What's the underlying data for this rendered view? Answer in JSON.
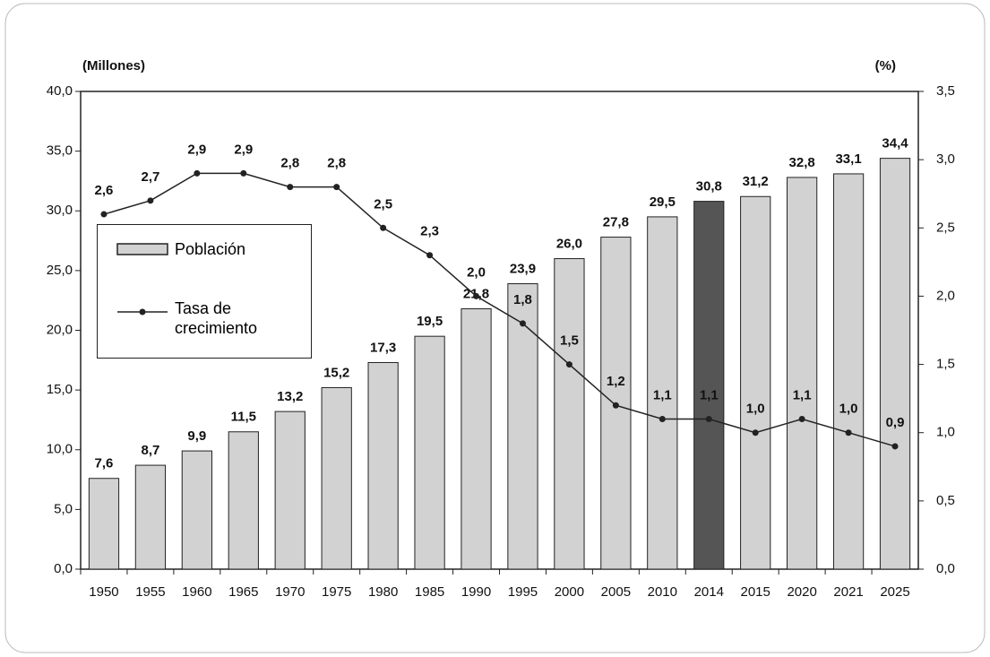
{
  "chart_data": {
    "type": "bar_line",
    "ylabel": "(Millones)",
    "y2label": "(%)",
    "categories": [
      "1950",
      "1955",
      "1960",
      "1965",
      "1970",
      "1975",
      "1980",
      "1985",
      "1990",
      "1995",
      "2000",
      "2005",
      "2010",
      "2014",
      "2015",
      "2020",
      "2021",
      "2025"
    ],
    "series": [
      {
        "name": "Población",
        "type": "bar",
        "color": "#d2d2d2",
        "colors": [
          "#d2d2d2",
          "#d2d2d2",
          "#d2d2d2",
          "#d2d2d2",
          "#d2d2d2",
          "#d2d2d2",
          "#d2d2d2",
          "#d2d2d2",
          "#d2d2d2",
          "#d2d2d2",
          "#d2d2d2",
          "#d2d2d2",
          "#d2d2d2",
          "#555555",
          "#d2d2d2",
          "#d2d2d2",
          "#d2d2d2",
          "#d2d2d2"
        ],
        "values": [
          7.6,
          8.7,
          9.9,
          11.5,
          13.2,
          15.2,
          17.3,
          19.5,
          21.8,
          23.9,
          26.0,
          27.8,
          29.5,
          30.8,
          31.2,
          32.8,
          33.1,
          34.4
        ],
        "value_labels": [
          "7,6",
          "8,7",
          "9,9",
          "11,5",
          "13,2",
          "15,2",
          "17,3",
          "19,5",
          "21,8",
          "23,9",
          "26,0",
          "27,8",
          "29,5",
          "30,8",
          "31,2",
          "32,8",
          "33,1",
          "34,4"
        ]
      },
      {
        "name": "Tasa de crecimiento",
        "type": "line",
        "axis": "y2",
        "color": "#222222",
        "values": [
          2.6,
          2.7,
          2.9,
          2.9,
          2.8,
          2.8,
          2.5,
          2.3,
          2.0,
          1.8,
          1.5,
          1.2,
          1.1,
          1.1,
          1.0,
          1.1,
          1.0,
          0.9
        ],
        "value_labels": [
          "2,6",
          "2,7",
          "2,9",
          "2,9",
          "2,8",
          "2,8",
          "2,5",
          "2,3",
          "2,0",
          "1,8",
          "1,5",
          "1,2",
          "1,1",
          "1,1",
          "1,0",
          "1,1",
          "1,0",
          "0,9"
        ]
      }
    ],
    "ylim": [
      0,
      40
    ],
    "yticks": [
      {
        "value": 0,
        "label": "0,0"
      },
      {
        "value": 5,
        "label": "5,0"
      },
      {
        "value": 10,
        "label": "10,0"
      },
      {
        "value": 15,
        "label": "15,0"
      },
      {
        "value": 20,
        "label": "20,0"
      },
      {
        "value": 25,
        "label": "25,0"
      },
      {
        "value": 30,
        "label": "30,0"
      },
      {
        "value": 35,
        "label": "35,0"
      },
      {
        "value": 40,
        "label": "40,0"
      }
    ],
    "y2lim": [
      0,
      3.5
    ],
    "y2ticks": [
      {
        "value": 0,
        "label": "0,0"
      },
      {
        "value": 0.5,
        "label": "0,5"
      },
      {
        "value": 1,
        "label": "1,0"
      },
      {
        "value": 1.5,
        "label": "1,5"
      },
      {
        "value": 2,
        "label": "2,0"
      },
      {
        "value": 2.5,
        "label": "2,5"
      },
      {
        "value": 3,
        "label": "3,0"
      },
      {
        "value": 3.5,
        "label": "3,5"
      }
    ],
    "grid": false
  }
}
